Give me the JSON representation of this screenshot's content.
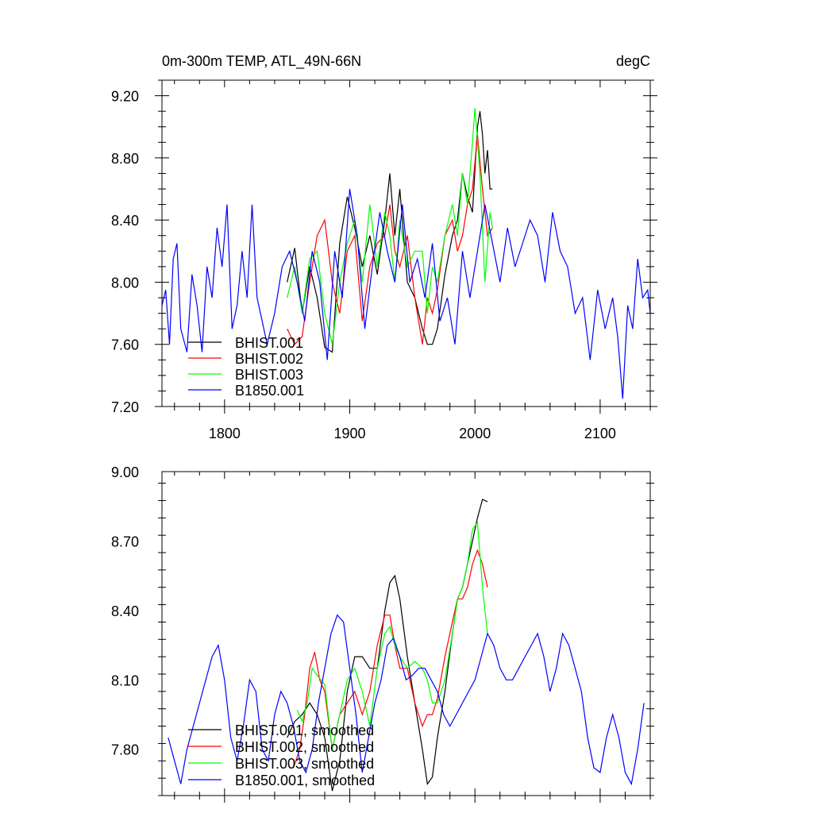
{
  "chart_data": [
    {
      "type": "line",
      "title": "0m-300m TEMP, ATL_49N-66N",
      "units": "degC",
      "xlim": [
        1750,
        2140
      ],
      "ylim": [
        7.2,
        9.3
      ],
      "xticks": [
        1800,
        1900,
        2000,
        2100
      ],
      "xtick_labels": [
        "1800",
        "1900",
        "2000",
        "2100"
      ],
      "yticks": [
        7.2,
        7.6,
        8.0,
        8.4,
        8.8,
        9.2
      ],
      "ytick_labels": [
        "7.20",
        "7.60",
        "8.00",
        "8.40",
        "8.80",
        "9.20"
      ],
      "legend_position": "bottom-left",
      "series": [
        {
          "name": "BHIST.001",
          "color": "#000000",
          "x": [
            1850,
            1856,
            1862,
            1868,
            1874,
            1880,
            1886,
            1892,
            1898,
            1904,
            1910,
            1916,
            1922,
            1928,
            1932,
            1936,
            1940,
            1946,
            1952,
            1958,
            1962,
            1966,
            1970,
            1976,
            1982,
            1986,
            1990,
            1994,
            1998,
            2002,
            2004,
            2006,
            2008,
            2010,
            2012,
            2014
          ],
          "values": [
            8.0,
            8.22,
            7.8,
            8.1,
            7.9,
            7.58,
            7.55,
            8.25,
            8.55,
            8.35,
            8.1,
            8.3,
            8.05,
            8.4,
            8.7,
            8.3,
            8.6,
            8.0,
            7.9,
            7.7,
            7.6,
            7.6,
            7.7,
            8.05,
            8.3,
            8.4,
            8.7,
            8.55,
            8.45,
            9.0,
            9.1,
            8.95,
            8.7,
            8.85,
            8.6,
            8.6
          ]
        },
        {
          "name": "BHIST.002",
          "color": "#ff0000",
          "x": [
            1850,
            1856,
            1862,
            1868,
            1874,
            1880,
            1886,
            1892,
            1898,
            1904,
            1910,
            1916,
            1922,
            1928,
            1932,
            1936,
            1940,
            1946,
            1952,
            1958,
            1962,
            1966,
            1970,
            1976,
            1982,
            1986,
            1990,
            1994,
            1998,
            2002,
            2006,
            2010,
            2014
          ],
          "values": [
            7.7,
            7.6,
            7.65,
            8.0,
            8.3,
            8.4,
            8.0,
            7.8,
            8.2,
            8.3,
            7.75,
            8.1,
            8.25,
            8.3,
            8.5,
            8.2,
            8.1,
            8.3,
            7.9,
            7.6,
            7.9,
            7.8,
            7.95,
            8.3,
            8.4,
            8.2,
            8.3,
            8.5,
            8.6,
            8.95,
            8.6,
            8.3,
            8.35
          ]
        },
        {
          "name": "BHIST.003",
          "color": "#00ff00",
          "x": [
            1850,
            1856,
            1862,
            1868,
            1874,
            1880,
            1886,
            1892,
            1898,
            1904,
            1910,
            1916,
            1922,
            1928,
            1932,
            1936,
            1940,
            1946,
            1952,
            1958,
            1962,
            1966,
            1970,
            1976,
            1982,
            1986,
            1990,
            1994,
            1998,
            2000,
            2004,
            2008,
            2012,
            2014
          ],
          "values": [
            7.9,
            8.1,
            7.8,
            8.15,
            8.2,
            7.8,
            7.6,
            8.0,
            8.25,
            8.4,
            8.0,
            8.5,
            8.1,
            8.45,
            8.3,
            8.0,
            8.4,
            8.1,
            8.2,
            8.2,
            7.8,
            8.1,
            8.0,
            8.3,
            8.5,
            8.3,
            8.7,
            8.5,
            8.9,
            9.12,
            8.7,
            8.0,
            8.45,
            8.35
          ]
        },
        {
          "name": "B1850.001",
          "color": "#0000ff",
          "x": [
            1750,
            1753,
            1756,
            1759,
            1762,
            1765,
            1770,
            1774,
            1778,
            1782,
            1786,
            1790,
            1794,
            1798,
            1802,
            1806,
            1810,
            1814,
            1818,
            1822,
            1826,
            1830,
            1834,
            1840,
            1846,
            1852,
            1858,
            1864,
            1870,
            1876,
            1882,
            1888,
            1894,
            1900,
            1906,
            1912,
            1918,
            1924,
            1930,
            1936,
            1942,
            1948,
            1954,
            1960,
            1966,
            1972,
            1978,
            1984,
            1990,
            1996,
            2002,
            2008,
            2014,
            2020,
            2026,
            2032,
            2038,
            2044,
            2050,
            2056,
            2062,
            2068,
            2074,
            2080,
            2086,
            2092,
            2098,
            2104,
            2110,
            2114,
            2118,
            2122,
            2126,
            2130,
            2134,
            2138,
            2140
          ],
          "values": [
            7.85,
            7.95,
            7.6,
            8.15,
            8.25,
            7.7,
            7.55,
            8.05,
            7.85,
            7.55,
            8.1,
            7.9,
            8.35,
            8.1,
            8.5,
            7.7,
            7.85,
            8.2,
            7.9,
            8.5,
            7.9,
            7.75,
            7.6,
            7.8,
            8.1,
            8.2,
            8.0,
            7.75,
            8.2,
            8.0,
            7.5,
            8.2,
            7.9,
            8.6,
            8.3,
            7.7,
            8.1,
            8.45,
            8.2,
            8.0,
            8.5,
            8.0,
            8.15,
            7.9,
            8.25,
            7.75,
            7.9,
            7.6,
            8.2,
            7.9,
            8.2,
            8.5,
            8.25,
            8.0,
            8.35,
            8.1,
            8.25,
            8.4,
            8.3,
            8.0,
            8.45,
            8.2,
            8.1,
            7.8,
            7.9,
            7.5,
            7.95,
            7.7,
            7.9,
            7.65,
            7.25,
            7.85,
            7.7,
            8.15,
            7.9,
            7.95,
            7.8
          ]
        }
      ]
    },
    {
      "type": "line",
      "xlim": [
        1750,
        2140
      ],
      "ylim": [
        7.6,
        9.0
      ],
      "xticks": [
        1800,
        1900,
        2000,
        2100
      ],
      "yticks": [
        7.8,
        8.1,
        8.4,
        8.7,
        9.0
      ],
      "ytick_labels": [
        "7.80",
        "8.10",
        "8.40",
        "8.70",
        "9.00"
      ],
      "legend_position": "bottom-left",
      "series": [
        {
          "name": "BHIST.001, smoothed",
          "color": "#000000",
          "x": [
            1850,
            1856,
            1862,
            1868,
            1874,
            1880,
            1886,
            1892,
            1898,
            1904,
            1910,
            1916,
            1922,
            1928,
            1932,
            1936,
            1940,
            1946,
            1952,
            1958,
            1962,
            1966,
            1970,
            1976,
            1982,
            1986,
            1990,
            1994,
            1998,
            2002,
            2006,
            2010
          ],
          "values": [
            7.85,
            7.92,
            7.95,
            8.0,
            7.95,
            7.85,
            7.62,
            7.75,
            8.05,
            8.2,
            8.2,
            8.15,
            8.15,
            8.4,
            8.52,
            8.55,
            8.45,
            8.2,
            8.0,
            7.8,
            7.65,
            7.68,
            7.85,
            8.05,
            8.3,
            8.45,
            8.5,
            8.6,
            8.7,
            8.8,
            8.88,
            8.87
          ]
        },
        {
          "name": "BHIST.002, smoothed",
          "color": "#ff0000",
          "x": [
            1855,
            1860,
            1864,
            1868,
            1872,
            1876,
            1880,
            1886,
            1892,
            1898,
            1904,
            1910,
            1916,
            1922,
            1928,
            1932,
            1936,
            1940,
            1946,
            1952,
            1958,
            1962,
            1966,
            1970,
            1976,
            1982,
            1986,
            1990,
            1994,
            1998,
            2002,
            2006,
            2010
          ],
          "values": [
            7.72,
            7.8,
            7.95,
            8.15,
            8.22,
            8.1,
            8.05,
            7.8,
            7.95,
            8.0,
            8.05,
            7.95,
            8.05,
            8.25,
            8.38,
            8.38,
            8.25,
            8.15,
            8.15,
            8.0,
            7.9,
            7.95,
            7.95,
            8.02,
            8.2,
            8.35,
            8.45,
            8.45,
            8.5,
            8.6,
            8.66,
            8.6,
            8.5
          ]
        },
        {
          "name": "BHIST.003, smoothed",
          "color": "#00ff00",
          "x": [
            1858,
            1862,
            1866,
            1870,
            1874,
            1880,
            1886,
            1892,
            1898,
            1904,
            1910,
            1916,
            1922,
            1928,
            1932,
            1936,
            1940,
            1946,
            1952,
            1958,
            1962,
            1966,
            1970,
            1976,
            1982,
            1986,
            1990,
            1994,
            1998,
            2002,
            2006,
            2010
          ],
          "values": [
            7.97,
            7.92,
            8.0,
            8.15,
            8.12,
            8.08,
            7.8,
            7.95,
            8.1,
            8.15,
            8.05,
            7.9,
            8.15,
            8.3,
            8.33,
            8.25,
            8.2,
            8.15,
            8.18,
            8.15,
            8.1,
            8.0,
            8.0,
            8.1,
            8.3,
            8.45,
            8.5,
            8.6,
            8.75,
            8.78,
            8.5,
            8.3
          ]
        },
        {
          "name": "B1850.001, smoothed",
          "color": "#0000ff",
          "x": [
            1755,
            1760,
            1765,
            1770,
            1775,
            1780,
            1785,
            1790,
            1795,
            1800,
            1805,
            1810,
            1815,
            1820,
            1825,
            1830,
            1835,
            1840,
            1845,
            1850,
            1855,
            1860,
            1865,
            1870,
            1875,
            1880,
            1885,
            1890,
            1895,
            1900,
            1905,
            1910,
            1915,
            1920,
            1925,
            1930,
            1935,
            1940,
            1945,
            1950,
            1955,
            1960,
            1965,
            1970,
            1975,
            1980,
            1985,
            1990,
            1995,
            2000,
            2005,
            2010,
            2015,
            2020,
            2025,
            2030,
            2035,
            2040,
            2045,
            2050,
            2055,
            2060,
            2065,
            2070,
            2075,
            2080,
            2085,
            2090,
            2095,
            2100,
            2105,
            2110,
            2115,
            2120,
            2125,
            2130,
            2135
          ],
          "values": [
            7.85,
            7.75,
            7.65,
            7.8,
            7.9,
            8.0,
            8.1,
            8.2,
            8.25,
            8.1,
            7.85,
            7.75,
            7.9,
            8.1,
            8.05,
            7.8,
            7.75,
            7.95,
            8.05,
            8.0,
            7.9,
            7.75,
            7.7,
            7.8,
            8.0,
            8.15,
            8.3,
            8.38,
            8.35,
            8.15,
            7.95,
            7.7,
            7.85,
            8.0,
            8.1,
            8.25,
            8.28,
            8.2,
            8.1,
            8.12,
            8.15,
            8.15,
            8.1,
            8.05,
            7.95,
            7.9,
            7.95,
            8.0,
            8.05,
            8.1,
            8.2,
            8.3,
            8.25,
            8.15,
            8.1,
            8.1,
            8.15,
            8.2,
            8.25,
            8.3,
            8.2,
            8.05,
            8.15,
            8.3,
            8.25,
            8.15,
            8.05,
            7.85,
            7.72,
            7.7,
            7.85,
            7.95,
            7.85,
            7.7,
            7.65,
            7.8,
            8.0
          ]
        }
      ]
    }
  ]
}
